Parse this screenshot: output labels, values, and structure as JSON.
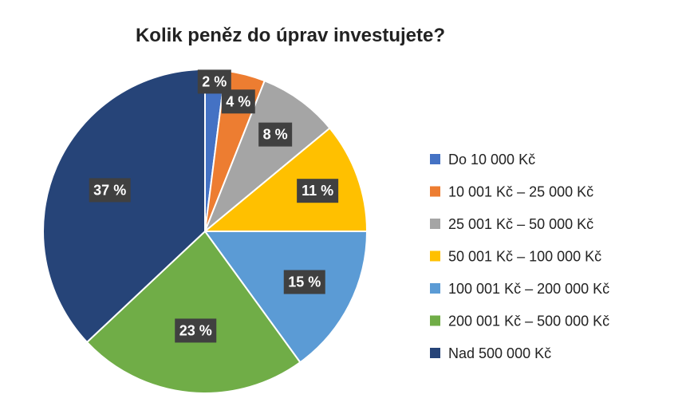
{
  "chart_data": {
    "type": "pie",
    "title": "Kolik peněz do úprav investujete?",
    "categories": [
      "Do 10 000 Kč",
      "10 001 Kč – 25 000 Kč",
      "25 001 Kč – 50 000 Kč",
      "50 001 Kč – 100 000 Kč",
      "100 001 Kč – 200 000 Kč",
      "200 001 Kč – 500 000 Kč",
      "Nad 500 000 Kč"
    ],
    "values": [
      2,
      4,
      8,
      11,
      15,
      23,
      37
    ],
    "data_labels": [
      "2 %",
      "4 %",
      "8 %",
      "11 %",
      "15 %",
      "23 %",
      "37 %"
    ],
    "colors": [
      "#4472C4",
      "#ED7D31",
      "#A5A5A5",
      "#FFC000",
      "#5B9BD5",
      "#70AD47",
      "#264478"
    ],
    "legend_position": "right",
    "start_angle": "12 o'clock, clockwise"
  }
}
